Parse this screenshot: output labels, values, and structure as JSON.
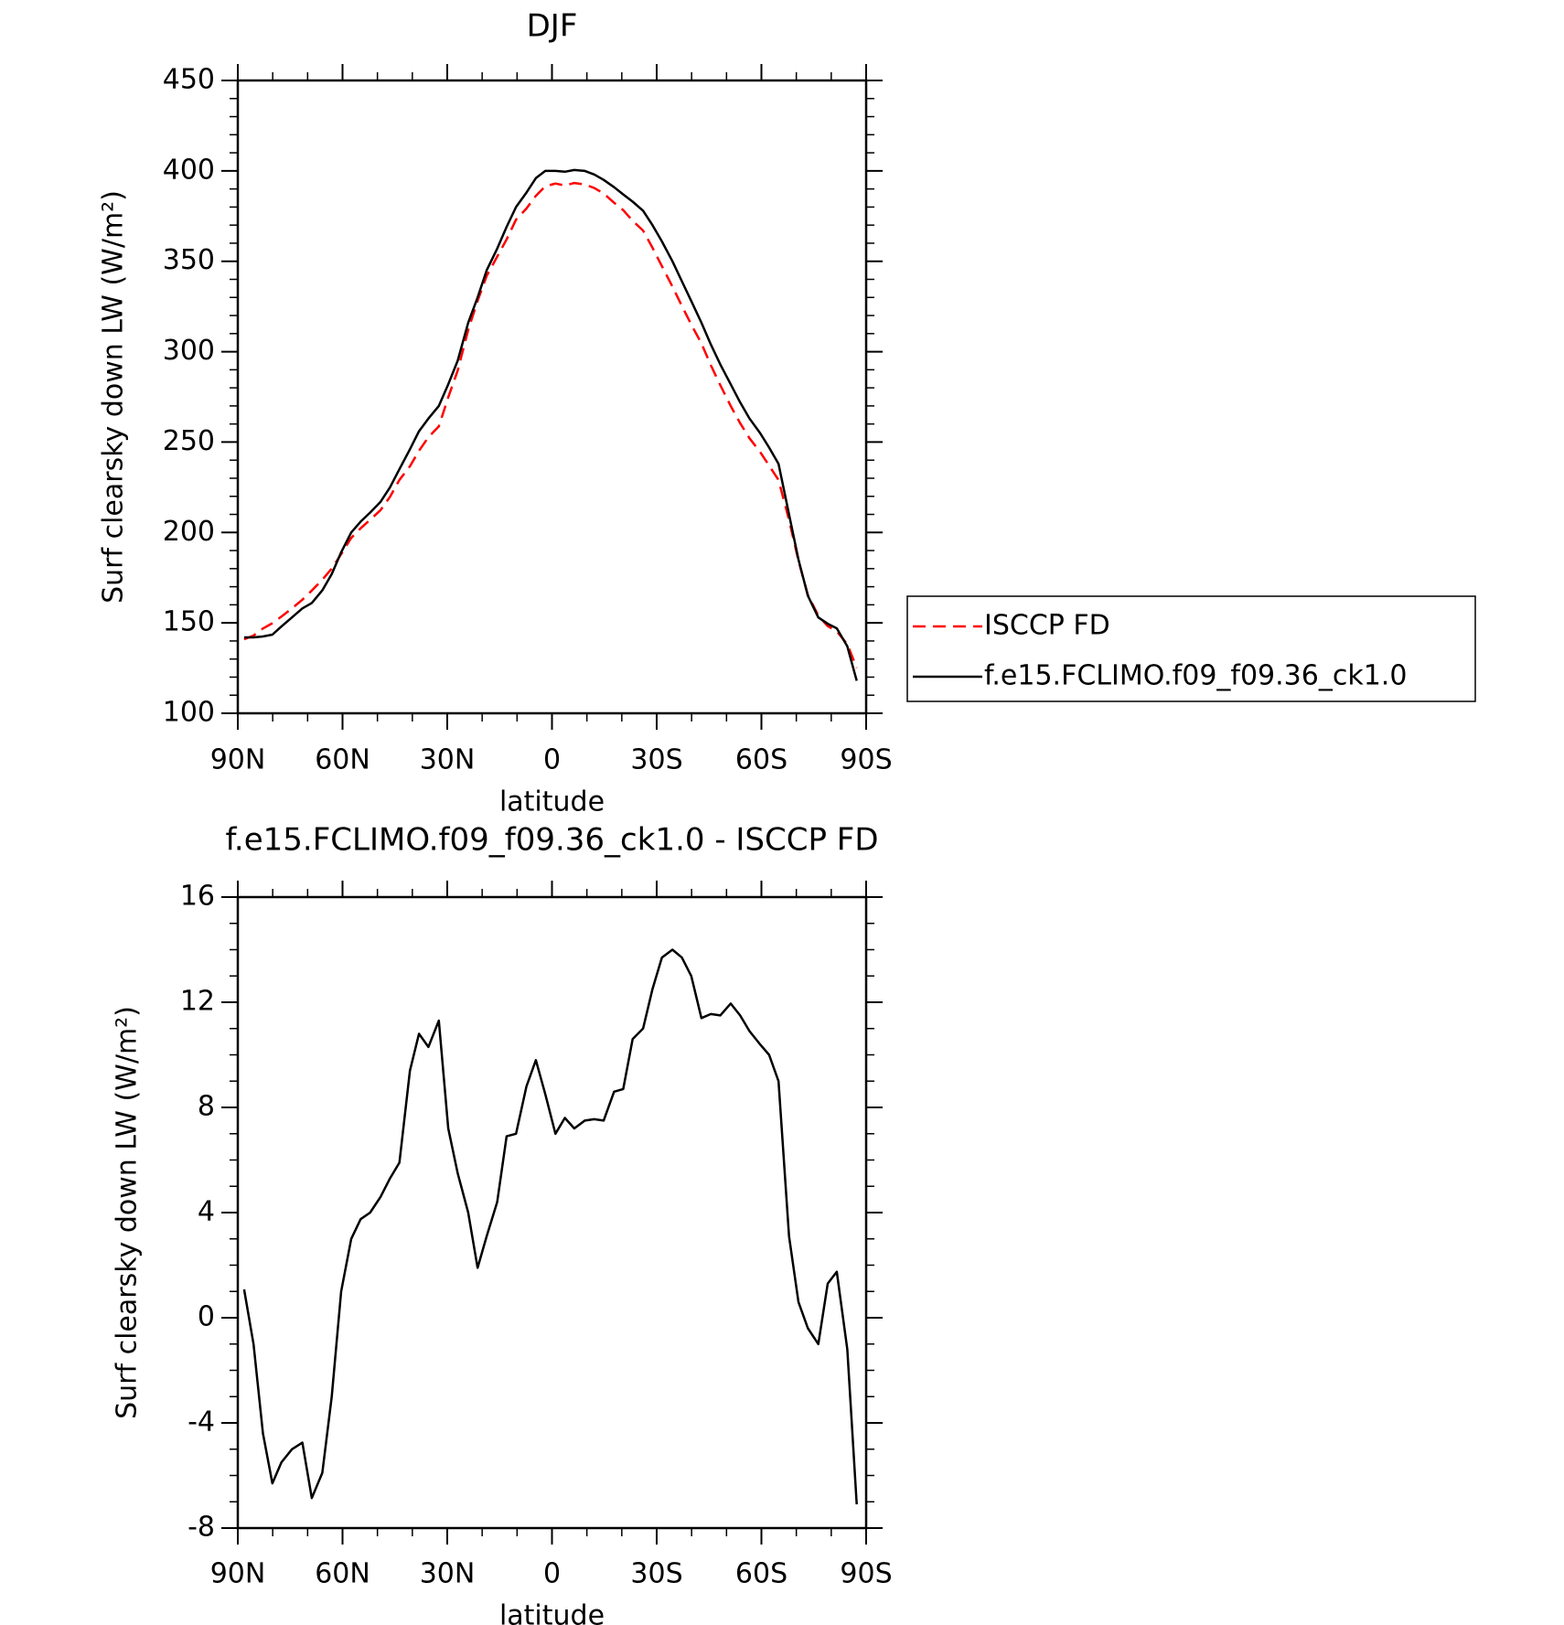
{
  "chart_data": [
    {
      "type": "line",
      "title": "DJF",
      "xlabel": "latitude",
      "ylabel": "Surf clearsky down LW (W/m²)",
      "x": [
        88.2,
        85.5,
        82.8,
        80.1,
        77.5,
        74.5,
        71.5,
        68.8,
        65.8,
        63.1,
        60.4,
        57.5,
        54.8,
        52.1,
        49.1,
        46.4,
        43.7,
        40.7,
        38.1,
        35.4,
        32.4,
        29.7,
        27.0,
        24.0,
        21.3,
        18.7,
        15.7,
        13.0,
        10.3,
        7.3,
        4.6,
        1.9,
        -1.0,
        -3.7,
        -6.4,
        -9.4,
        -12.1,
        -14.8,
        -17.8,
        -20.4,
        -23.1,
        -26.1,
        -28.8,
        -31.5,
        -34.5,
        -37.2,
        -39.9,
        -42.8,
        -45.5,
        -48.2,
        -51.2,
        -53.9,
        -56.6,
        -59.6,
        -62.2,
        -64.9,
        -67.9,
        -70.6,
        -73.3,
        -76.3,
        -79.0,
        -81.6,
        -84.6,
        -87.3
      ],
      "series": [
        {
          "name": "ISCCP FD",
          "color": "#ff0000",
          "linestyle": "dashed",
          "values": [
            140.9,
            143,
            146.9,
            149.8,
            153.5,
            158,
            162.8,
            167.9,
            173.9,
            180,
            188,
            197,
            202.3,
            207,
            212.4,
            219.7,
            229.1,
            236.6,
            245.2,
            252.7,
            258.7,
            274.8,
            289.5,
            312,
            328.1,
            341.9,
            352.6,
            362.1,
            373,
            379.2,
            386.2,
            391.5,
            393,
            391.9,
            393.3,
            392.5,
            390.5,
            387.5,
            382.4,
            378.3,
            372.4,
            367,
            357.5,
            347.3,
            336,
            325.3,
            315,
            304.6,
            292.5,
            281.5,
            270,
            260.5,
            252.1,
            244.6,
            237,
            229,
            206.9,
            184.4,
            165.4,
            154,
            148.2,
            145.3,
            138.2,
            125.1
          ]
        },
        {
          "name": "f.e15.FCLIMO.f09_f09.36_ck1.0",
          "color": "#000000",
          "linestyle": "solid",
          "values": [
            142,
            142,
            142.5,
            143.5,
            148,
            153,
            158,
            161,
            168,
            177,
            189,
            200,
            206,
            211,
            217,
            225,
            235,
            246,
            256,
            263,
            270,
            282,
            295,
            316,
            330,
            345,
            357,
            369,
            380,
            388,
            396,
            400,
            400,
            399.5,
            400.5,
            400,
            398,
            395,
            391,
            387,
            383,
            378,
            370,
            361,
            350,
            339,
            328,
            316,
            304,
            293,
            282,
            272,
            263,
            255,
            247,
            238,
            210,
            185,
            165,
            153,
            149.5,
            147,
            137,
            118
          ]
        }
      ],
      "xlim": [
        90,
        -90
      ],
      "xticks": [
        {
          "value": 90,
          "label": "90N"
        },
        {
          "value": 60,
          "label": "60N"
        },
        {
          "value": 30,
          "label": "30N"
        },
        0,
        {
          "value": -30,
          "label": "30S"
        },
        {
          "value": -60,
          "label": "60S"
        },
        {
          "value": -90,
          "label": "90S"
        }
      ],
      "x_minor_divisions": 3,
      "ylim": [
        100,
        450
      ],
      "yticks": [
        100,
        150,
        200,
        250,
        300,
        350,
        400,
        450
      ],
      "y_minor_divisions": 5,
      "legend": "right"
    },
    {
      "type": "line",
      "title": "f.e15.FCLIMO.f09_f09.36_ck1.0 - ISCCP FD",
      "xlabel": "latitude",
      "ylabel": "Surf clearsky down LW (W/m²)",
      "x": [
        88.2,
        85.5,
        82.8,
        80.1,
        77.5,
        74.5,
        71.5,
        68.8,
        65.8,
        63.1,
        60.4,
        57.5,
        54.8,
        52.1,
        49.1,
        46.4,
        43.7,
        40.7,
        38.1,
        35.4,
        32.4,
        29.7,
        27.0,
        24.0,
        21.3,
        18.7,
        15.7,
        13.0,
        10.3,
        7.3,
        4.6,
        1.9,
        -1.0,
        -3.7,
        -6.4,
        -9.4,
        -12.1,
        -14.8,
        -17.8,
        -20.4,
        -23.1,
        -26.1,
        -28.8,
        -31.5,
        -34.5,
        -37.2,
        -39.9,
        -42.8,
        -45.5,
        -48.2,
        -51.2,
        -53.9,
        -56.6,
        -59.6,
        -62.2,
        -64.9,
        -67.9,
        -70.6,
        -73.3,
        -76.3,
        -79.0,
        -81.6,
        -84.6,
        -87.3
      ],
      "series": [
        {
          "color": "#000000",
          "linestyle": "solid",
          "values": [
            1.08,
            -1.0,
            -4.4,
            -6.3,
            -5.5,
            -5.0,
            -4.75,
            -6.86,
            -5.9,
            -3.0,
            1.0,
            3.0,
            3.75,
            4.0,
            4.6,
            5.3,
            5.9,
            9.4,
            10.8,
            10.3,
            11.3,
            7.2,
            5.5,
            4.0,
            1.9,
            3.1,
            4.4,
            6.9,
            7.0,
            8.8,
            9.8,
            8.5,
            7.0,
            7.6,
            7.2,
            7.5,
            7.55,
            7.5,
            8.6,
            8.7,
            10.6,
            11.0,
            12.5,
            13.7,
            14.0,
            13.7,
            13.0,
            11.4,
            11.55,
            11.5,
            11.95,
            11.5,
            10.9,
            10.4,
            10.0,
            9.0,
            3.1,
            0.6,
            -0.4,
            -1.0,
            1.3,
            1.75,
            -1.2,
            -7.1
          ]
        }
      ],
      "xlim": [
        90,
        -90
      ],
      "xticks": [
        {
          "value": 90,
          "label": "90N"
        },
        {
          "value": 60,
          "label": "60N"
        },
        {
          "value": 30,
          "label": "30N"
        },
        0,
        {
          "value": -30,
          "label": "30S"
        },
        {
          "value": -60,
          "label": "60S"
        },
        {
          "value": -90,
          "label": "90S"
        }
      ],
      "x_minor_divisions": 3,
      "ylim": [
        -8,
        16
      ],
      "yticks": [
        -8,
        -4,
        0,
        4,
        8,
        12,
        16
      ],
      "y_minor_divisions": 4
    }
  ]
}
